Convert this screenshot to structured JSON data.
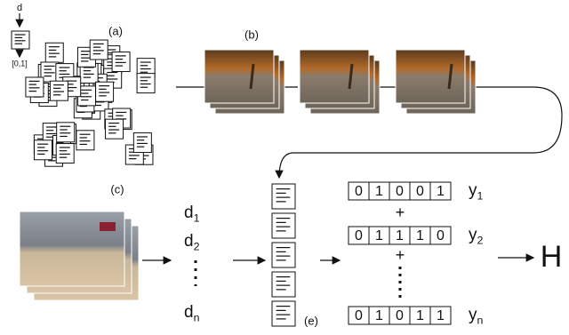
{
  "labels": {
    "d": "d",
    "unit": "[0,1]",
    "a": "(a)",
    "b": "(b)",
    "c": "(c)",
    "e": "(e)",
    "H": "H",
    "plus": [
      "+",
      "+"
    ]
  },
  "descriptors": [
    {
      "base": "d",
      "sub": "1"
    },
    {
      "base": "d",
      "sub": "2"
    },
    {
      "base": "d",
      "sub": "n"
    }
  ],
  "codes": [
    {
      "bits": [
        "0",
        "1",
        "0",
        "0",
        "1"
      ],
      "label": {
        "base": "y",
        "sub": "1"
      }
    },
    {
      "bits": [
        "0",
        "1",
        "1",
        "1",
        "0"
      ],
      "label": {
        "base": "y",
        "sub": "2"
      }
    },
    {
      "bits": [
        "0",
        "1",
        "0",
        "1",
        "1"
      ],
      "label": {
        "base": "y",
        "sub": "n"
      }
    }
  ]
}
